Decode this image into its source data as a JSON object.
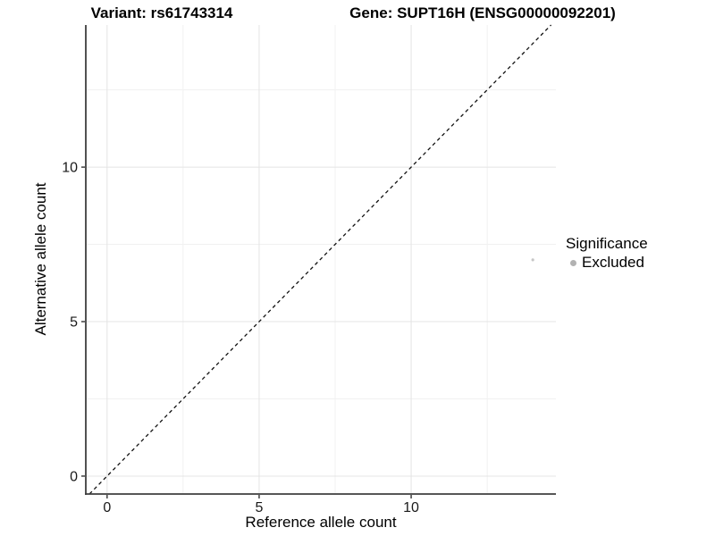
{
  "chart_data": {
    "type": "scatter",
    "titles": {
      "variant": "Variant: rs61743314",
      "gene": "Gene: SUPT16H (ENSG00000092201)"
    },
    "xlabel": "Reference allele count",
    "ylabel": "Alternative allele count",
    "x_ticks": [
      0,
      5,
      10
    ],
    "y_ticks": [
      0,
      5,
      10
    ],
    "x_minor_ticks": [
      2.5,
      7.5,
      12.5
    ],
    "y_minor_ticks": [
      2.5,
      7.5,
      12.5
    ],
    "xlim": [
      -0.7,
      14.76
    ],
    "ylim": [
      -0.58,
      14.6
    ],
    "grid": true,
    "identity_line": {
      "shown": true,
      "slope": 1,
      "intercept": 0,
      "style": "dashed",
      "color": "#111111"
    },
    "series": [
      {
        "name": "Excluded",
        "color": "#c6c6c6",
        "point_radius": 1.6,
        "points": [
          {
            "x": 14,
            "y": 7
          }
        ]
      }
    ],
    "legend": {
      "title": "Significance",
      "position": "right",
      "items": [
        {
          "label": "Excluded",
          "color": "#b2b2b2"
        }
      ]
    },
    "colors": {
      "background": "#ffffff",
      "grid_major": "#e4e4e4",
      "grid_minor": "#f1f1f1",
      "axis_line": "#3f3f3f",
      "tick_label": "#1a1a1a"
    }
  }
}
